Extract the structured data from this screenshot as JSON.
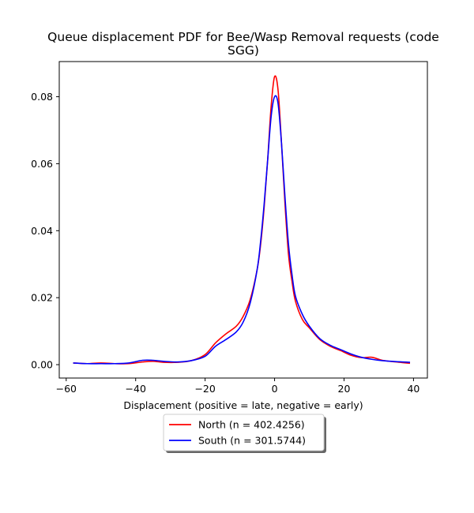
{
  "chart_data": {
    "type": "line",
    "title_lines": [
      "Queue displacement PDF for Bee/Wasp Removal  requests (code",
      "SGG)"
    ],
    "xlabel": "Displacement (positive = late, negative = early)",
    "ylabel": "",
    "xlim": [
      -62,
      44
    ],
    "ylim": [
      -0.004,
      0.0905
    ],
    "xticks": [
      -60,
      -40,
      -20,
      0,
      20,
      40
    ],
    "xtick_labels": [
      "−60",
      "−40",
      "−20",
      "0",
      "20",
      "40"
    ],
    "yticks": [
      0.0,
      0.02,
      0.04,
      0.06,
      0.08
    ],
    "ytick_labels": [
      "0.00",
      "0.02",
      "0.04",
      "0.06",
      "0.08"
    ],
    "grid": false,
    "legend_placement": "below",
    "series": [
      {
        "name": "North (n = 402.4256)",
        "color": "#ff0000",
        "x": [
          -58,
          -54,
          -50,
          -46,
          -42,
          -38,
          -35,
          -32,
          -28,
          -24,
          -20,
          -17,
          -14,
          -11,
          -9,
          -7,
          -5,
          -4,
          -3,
          -2,
          -1,
          0,
          1,
          2,
          3,
          4,
          5,
          6,
          8,
          10,
          13,
          16,
          19,
          22,
          25,
          28,
          31,
          35,
          39
        ],
        "y": [
          0.0005,
          0.0003,
          0.0005,
          0.0003,
          0.0003,
          0.0008,
          0.001,
          0.0007,
          0.0007,
          0.0012,
          0.003,
          0.0065,
          0.0092,
          0.0115,
          0.0145,
          0.0195,
          0.0285,
          0.036,
          0.047,
          0.061,
          0.077,
          0.086,
          0.082,
          0.066,
          0.048,
          0.033,
          0.025,
          0.019,
          0.0135,
          0.011,
          0.0075,
          0.0055,
          0.0042,
          0.0028,
          0.0021,
          0.0022,
          0.0013,
          0.0008,
          0.0004
        ]
      },
      {
        "name": "South (n = 301.5744)",
        "color": "#0000ff",
        "x": [
          -58,
          -54,
          -50,
          -46,
          -42,
          -38,
          -35,
          -32,
          -28,
          -24,
          -20,
          -17,
          -14,
          -11,
          -9,
          -7,
          -5,
          -4,
          -3,
          -2,
          -1,
          0,
          1,
          2,
          3,
          4,
          5,
          6,
          8,
          10,
          13,
          16,
          19,
          22,
          25,
          28,
          31,
          35,
          39
        ],
        "y": [
          0.0005,
          0.0003,
          0.0003,
          0.0003,
          0.0005,
          0.0013,
          0.0013,
          0.001,
          0.0008,
          0.0012,
          0.0025,
          0.0055,
          0.0075,
          0.0098,
          0.0128,
          0.0185,
          0.0285,
          0.037,
          0.048,
          0.061,
          0.074,
          0.08,
          0.078,
          0.066,
          0.05,
          0.036,
          0.027,
          0.0205,
          0.015,
          0.0115,
          0.0078,
          0.0058,
          0.0045,
          0.0032,
          0.0022,
          0.0016,
          0.0012,
          0.0009,
          0.0007
        ]
      }
    ]
  }
}
